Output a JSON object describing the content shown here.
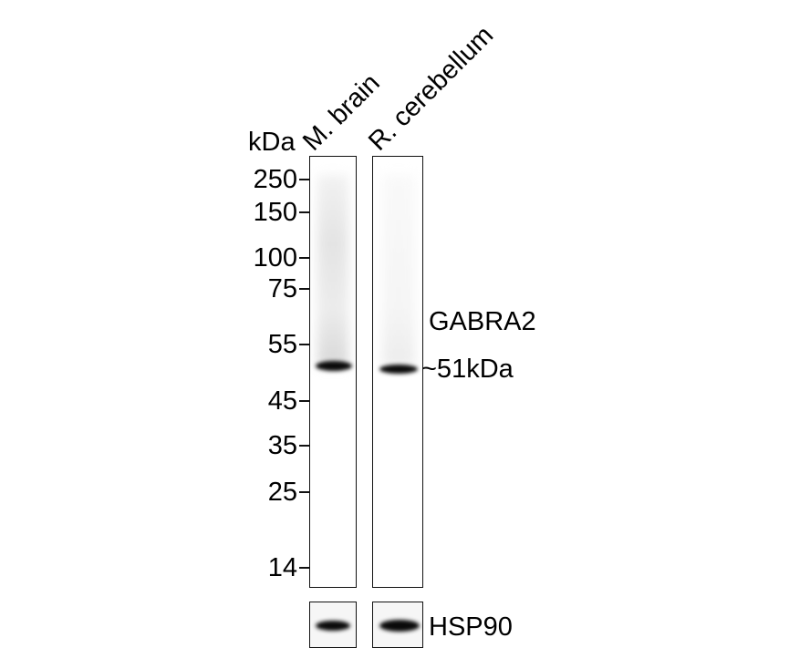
{
  "unit_label": "kDa",
  "lanes": [
    {
      "label": "M. brain"
    },
    {
      "label": "R. cerebellum"
    }
  ],
  "markers": [
    "250",
    "150",
    "100",
    "75",
    "55",
    "45",
    "35",
    "25",
    "14"
  ],
  "target": {
    "name": "GABRA2",
    "size": "~51kDa"
  },
  "loading_control": "HSP90"
}
